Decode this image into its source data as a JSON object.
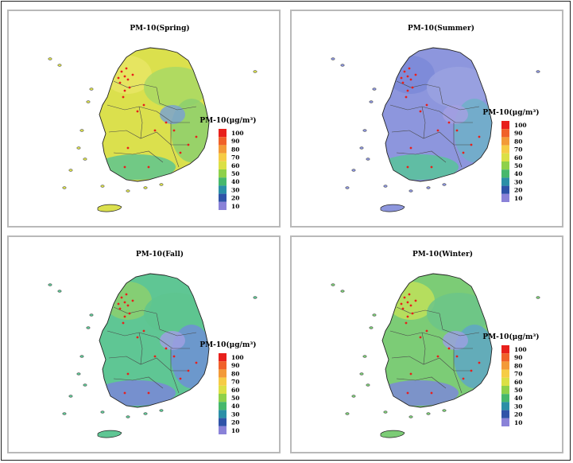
{
  "figure": {
    "legend": {
      "title": "PM-10(μg/m³)",
      "ticks": [
        "100",
        "90",
        "80",
        "70",
        "60",
        "50",
        "40",
        "30",
        "20",
        "10"
      ],
      "colors": [
        "#e8201c",
        "#f0612a",
        "#f39a38",
        "#f6cc45",
        "#dbe045",
        "#8ed14a",
        "#46b86c",
        "#2b8fa7",
        "#2f53a8",
        "#8a82d8"
      ]
    },
    "panels": [
      {
        "title": "PM-10(Spring)",
        "base": "#dbe04d",
        "zones": [
          "#e8e565",
          "#a8d865",
          "#8ccf6e",
          "#5ec48f",
          "#7aa2d0"
        ]
      },
      {
        "title": "PM-10(Summer)",
        "base": "#8d96dd",
        "zones": [
          "#7b8ad8",
          "#9aa2e0",
          "#6fb0c8",
          "#58c49a",
          "#a3a0e2"
        ]
      },
      {
        "title": "PM-10(Fall)",
        "base": "#5fc694",
        "zones": [
          "#8ccf6e",
          "#5ec48f",
          "#6f8fd6",
          "#7a86d8",
          "#9d9fe0"
        ]
      },
      {
        "title": "PM-10(Winter)",
        "base": "#7ccc76",
        "zones": [
          "#bfe05a",
          "#6cc48a",
          "#5fa6c6",
          "#7c88d8",
          "#9aa0e0"
        ]
      }
    ]
  }
}
